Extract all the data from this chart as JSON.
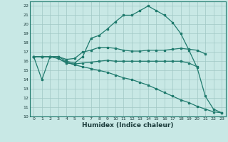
{
  "title": "",
  "xlabel": "Humidex (Indice chaleur)",
  "xlim": [
    -0.5,
    23.5
  ],
  "ylim": [
    10,
    22.5
  ],
  "xticks": [
    0,
    1,
    2,
    3,
    4,
    5,
    6,
    7,
    8,
    9,
    10,
    11,
    12,
    13,
    14,
    15,
    16,
    17,
    18,
    19,
    20,
    21,
    22,
    23
  ],
  "yticks": [
    10,
    11,
    12,
    13,
    14,
    15,
    16,
    17,
    18,
    19,
    20,
    21,
    22
  ],
  "line_color": "#1f7a6d",
  "bg_color": "#c8e8e5",
  "grid_color": "#a0c8c4",
  "lines": [
    [
      16.5,
      14.0,
      16.5,
      16.5,
      16.0,
      15.8,
      16.5,
      18.5,
      18.8,
      19.5,
      20.3,
      21.0,
      21.0,
      21.5,
      22.0,
      21.5,
      21.0,
      20.2,
      19.0,
      17.2,
      15.3,
      12.2,
      10.8,
      10.4
    ],
    [
      16.5,
      16.5,
      16.5,
      16.5,
      16.2,
      16.3,
      17.0,
      17.2,
      17.5,
      17.5,
      17.4,
      17.2,
      17.1,
      17.1,
      17.2,
      17.2,
      17.2,
      17.3,
      17.4,
      17.3,
      17.2,
      16.8,
      null,
      null
    ],
    [
      16.5,
      16.5,
      16.5,
      16.3,
      15.8,
      15.7,
      15.8,
      15.9,
      16.0,
      16.1,
      16.0,
      16.0,
      16.0,
      16.0,
      16.0,
      16.0,
      16.0,
      16.0,
      16.0,
      15.8,
      15.4,
      null,
      null,
      null
    ],
    [
      16.5,
      16.5,
      16.5,
      16.3,
      15.9,
      15.6,
      15.4,
      15.2,
      15.0,
      14.8,
      14.5,
      14.2,
      14.0,
      13.7,
      13.4,
      13.0,
      12.6,
      12.2,
      11.8,
      11.5,
      11.1,
      10.8,
      10.5,
      10.4
    ]
  ]
}
